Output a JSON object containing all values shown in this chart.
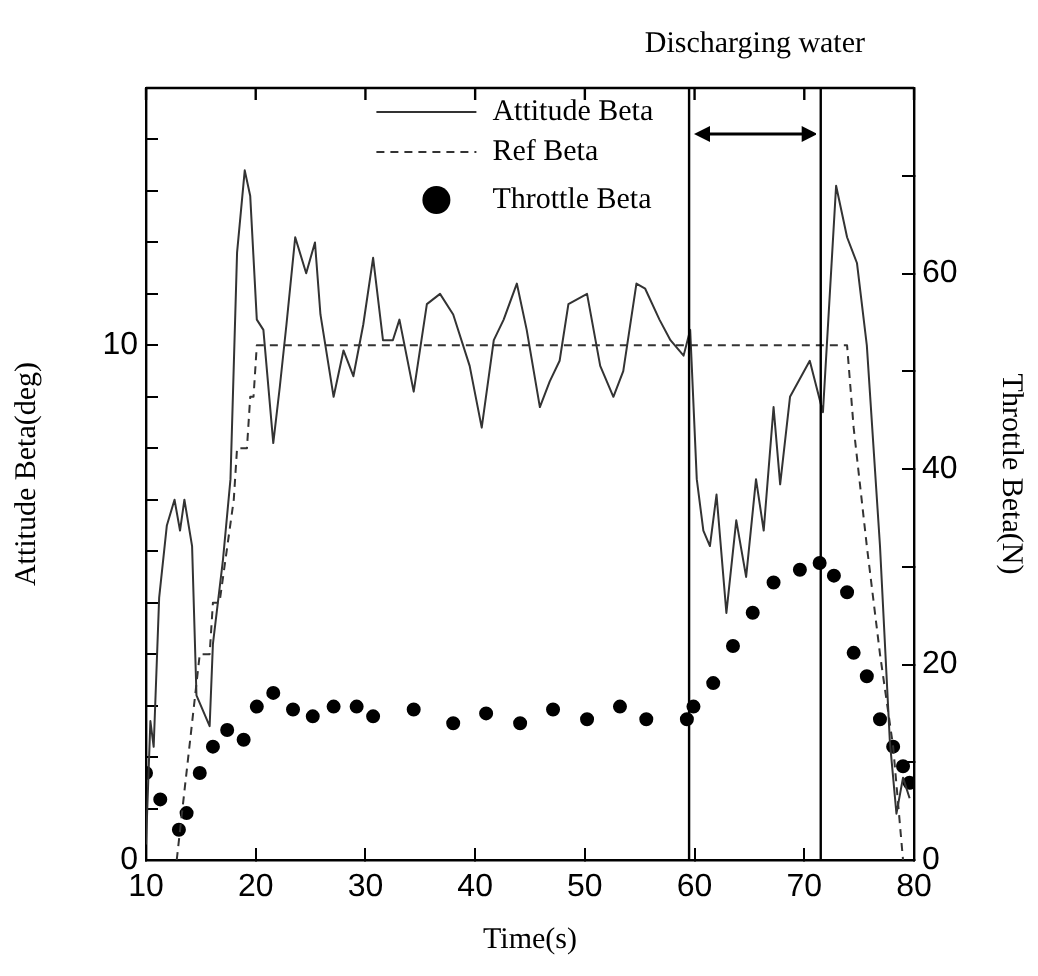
{
  "chart_data": {
    "type": "line",
    "xlabel": "Time(s)",
    "ylabel": "Attitude Beta(deg)",
    "y2label": "Throttle Beta(N)",
    "xlim": [
      10,
      80
    ],
    "xticks": [
      10,
      20,
      30,
      40,
      50,
      60,
      70,
      80
    ],
    "ylim": [
      0,
      15
    ],
    "yticks": [
      0,
      {
        "value": 1,
        "label": null
      },
      {
        "value": 2,
        "label": null
      },
      {
        "value": 3,
        "label": null
      },
      {
        "value": 4,
        "label": null
      },
      {
        "value": 5,
        "label": null
      },
      {
        "value": 6,
        "label": null
      },
      {
        "value": 7,
        "label": null
      },
      {
        "value": 8,
        "label": null
      },
      {
        "value": 9,
        "label": null
      },
      10,
      {
        "value": 11,
        "label": null
      },
      {
        "value": 12,
        "label": null
      },
      {
        "value": 13,
        "label": null
      },
      {
        "value": 14,
        "label": null
      }
    ],
    "y2lim": [
      0,
      79
    ],
    "y2ticks": [
      0,
      {
        "value": 10,
        "label": null
      },
      20,
      {
        "value": 30,
        "label": null
      },
      40,
      {
        "value": 50,
        "label": null
      },
      60,
      {
        "value": 70,
        "label": null
      }
    ],
    "grid": false,
    "legend": "top",
    "series": [
      {
        "name": "Attitude Beta",
        "type": "line",
        "color": "#333333",
        "line_style": "solid",
        "marker": "none",
        "x": [
          10,
          10.4,
          10.7,
          11.2,
          11.9,
          12.6,
          13.1,
          13.5,
          14.2,
          14.6,
          15.8,
          16.1,
          17.0,
          17.7,
          18.3,
          19.0,
          19.5,
          20.1,
          20.7,
          21.6,
          22.2,
          22.8,
          23.6,
          24.6,
          25.4,
          25.9,
          27.1,
          28.0,
          28.9,
          29.8,
          30.7,
          31.6,
          32.5,
          33.1,
          34.4,
          35.6,
          36.8,
          38.0,
          39.5,
          40.6,
          41.7,
          42.6,
          43.8,
          44.7,
          45.9,
          46.8,
          47.7,
          48.5,
          50.2,
          51.4,
          52.6,
          53.5,
          54.7,
          55.5,
          56.8,
          57.8,
          59.0,
          59.6,
          60.2,
          60.8,
          61.4,
          62.0,
          62.9,
          63.8,
          64.7,
          65.6,
          66.3,
          67.2,
          67.8,
          68.7,
          70.5,
          71.7,
          72.9,
          73.9,
          74.8,
          75.7,
          76.9,
          77.8,
          78.4,
          79.0,
          79.6
        ],
        "values": [
          0.3,
          2.7,
          2.2,
          5.1,
          6.5,
          7.0,
          6.4,
          7.0,
          6.1,
          3.2,
          2.6,
          4.2,
          5.8,
          7.4,
          11.8,
          13.4,
          12.9,
          10.5,
          10.3,
          8.1,
          9.2,
          10.4,
          12.1,
          11.4,
          12.0,
          10.6,
          9.0,
          9.9,
          9.4,
          10.4,
          11.7,
          10.1,
          10.1,
          10.5,
          9.1,
          10.8,
          11.0,
          10.6,
          9.6,
          8.4,
          10.1,
          10.5,
          11.2,
          10.3,
          8.8,
          9.3,
          9.7,
          10.8,
          11.0,
          9.6,
          9.0,
          9.5,
          11.2,
          11.1,
          10.5,
          10.1,
          9.8,
          10.3,
          7.4,
          6.4,
          6.1,
          7.1,
          4.8,
          6.6,
          5.5,
          7.4,
          6.4,
          8.8,
          7.3,
          9.0,
          9.7,
          8.7,
          13.1,
          12.1,
          11.6,
          10.0,
          6.1,
          2.3,
          0.9,
          1.6,
          1.2
        ]
      },
      {
        "name": "Ref Beta",
        "type": "line",
        "color": "#333333",
        "line_style": "dashed",
        "marker": "none",
        "x": [
          12.8,
          14.9,
          15.8,
          16.1,
          16.7,
          18.0,
          18.3,
          19.2,
          19.5,
          19.8,
          20.1,
          73.9,
          74.5,
          75.7,
          76.9,
          78.1,
          79.0
        ],
        "values": [
          0,
          4.0,
          4.0,
          5.0,
          5.0,
          7.0,
          8.0,
          8.0,
          9.0,
          9.0,
          10,
          10,
          8.4,
          6.1,
          4.0,
          2.2,
          0
        ]
      },
      {
        "name": "Throttle Beta",
        "type": "scatter",
        "axis": "y2",
        "color": "#000000",
        "marker": "circle",
        "x": [
          10,
          11.3,
          13.0,
          13.7,
          14.9,
          16.1,
          17.4,
          18.9,
          20.1,
          21.6,
          23.4,
          25.2,
          27.1,
          29.2,
          30.7,
          34.4,
          38.0,
          41.0,
          44.1,
          47.1,
          50.2,
          53.2,
          55.6,
          59.3,
          59.9,
          61.7,
          63.5,
          65.3,
          67.2,
          69.6,
          71.4,
          72.7,
          73.9,
          74.5,
          75.7,
          76.9,
          78.1,
          79.0,
          79.6
        ],
        "values": [
          8.9,
          6.2,
          3.1,
          4.8,
          8.9,
          11.6,
          13.3,
          12.3,
          15.7,
          17.1,
          15.4,
          14.7,
          15.7,
          15.7,
          14.7,
          15.4,
          14.0,
          15.0,
          14.0,
          15.4,
          14.4,
          15.7,
          14.4,
          14.4,
          15.7,
          18.1,
          21.9,
          25.3,
          28.4,
          29.7,
          30.4,
          29.1,
          27.4,
          21.2,
          18.8,
          14.4,
          11.6,
          9.6,
          7.9
        ]
      }
    ],
    "ref_lines": [
      {
        "axis": "x",
        "value": 59.5,
        "color": "#000000",
        "line_style": "solid"
      },
      {
        "axis": "x",
        "value": 71.5,
        "color": "#000000",
        "line_style": "solid"
      }
    ],
    "annotations": [
      "Discharging water"
    ]
  }
}
